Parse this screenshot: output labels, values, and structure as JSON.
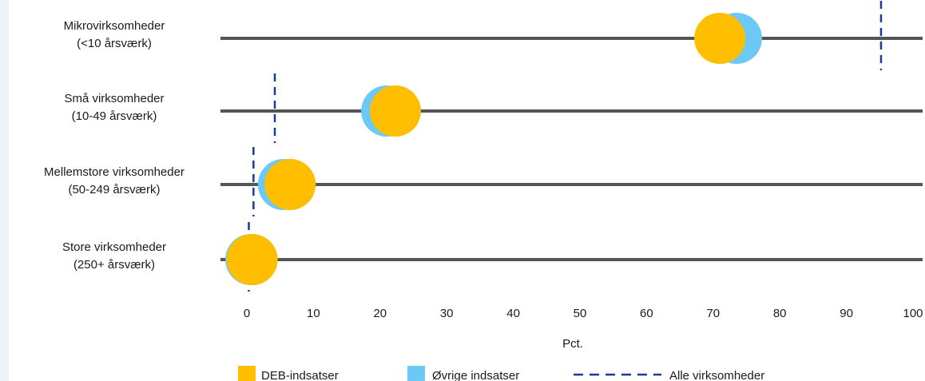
{
  "chart_data": {
    "type": "scatter",
    "orientation": "horizontal-dot-plot",
    "categories": [
      [
        "Mikrovirksomheder",
        "(<10 årsværk)"
      ],
      [
        "Små virksomheder",
        "(10-49 årsværk)"
      ],
      [
        "Mellemstore virksomheder",
        "(50-249 årsværk)"
      ],
      [
        "Store virksomheder",
        "(250+ årsværk)"
      ]
    ],
    "series": [
      {
        "name": "Øvrige indsatser",
        "type": "dot",
        "color": "#6cc9f5",
        "values": [
          73.5,
          21.0,
          5.5,
          0.6
        ]
      },
      {
        "name": "DEB-indsatser",
        "type": "dot",
        "color": "#ffbe00",
        "values": [
          71.0,
          22.3,
          6.5,
          0.8
        ]
      },
      {
        "name": "Alle virksomheder",
        "type": "dashed-reference",
        "color": "#1f3a93",
        "values": [
          95.2,
          4.2,
          1.0,
          0.3
        ]
      }
    ],
    "xlim": [
      0,
      100
    ],
    "xticks": [
      0,
      10,
      20,
      30,
      40,
      50,
      60,
      70,
      80,
      90,
      100
    ],
    "xlabel": "Pct.",
    "legend": {
      "position": "bottom",
      "items": [
        {
          "label": "DEB-indsatser",
          "color": "#ffbe00",
          "marker": "square"
        },
        {
          "label": "Øvrige indsatser",
          "color": "#6cc9f5",
          "marker": "square"
        },
        {
          "label": "Alle virksomheder",
          "color": "#1f3a93",
          "marker": "dashed-line"
        }
      ]
    },
    "track_color": "#555555"
  }
}
